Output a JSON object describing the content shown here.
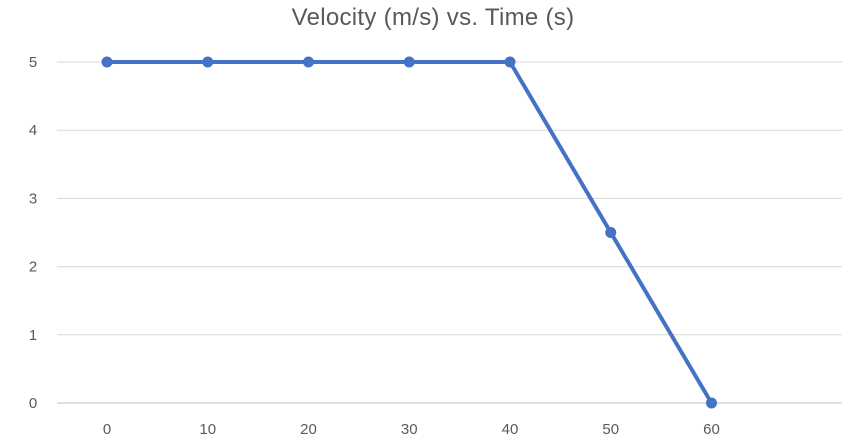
{
  "chart_data": {
    "type": "line",
    "title": "Velocity (m/s) vs. Time (s)",
    "xlabel": "",
    "ylabel": "",
    "categories": [
      "0",
      "10",
      "20",
      "30",
      "40",
      "50",
      "60"
    ],
    "x": [
      0,
      10,
      20,
      30,
      40,
      50,
      60
    ],
    "series": [
      {
        "values": [
          5,
          5,
          5,
          5,
          5,
          2.5,
          0
        ]
      }
    ],
    "ylim": [
      0,
      5
    ],
    "yticks": [
      0,
      1,
      2,
      3,
      4,
      5
    ],
    "grid": true,
    "legend": "none",
    "colors": {
      "series": "#4472C4",
      "grid": "#D9D9D9",
      "axis": "#BFBFBF",
      "text": "#595959"
    }
  }
}
